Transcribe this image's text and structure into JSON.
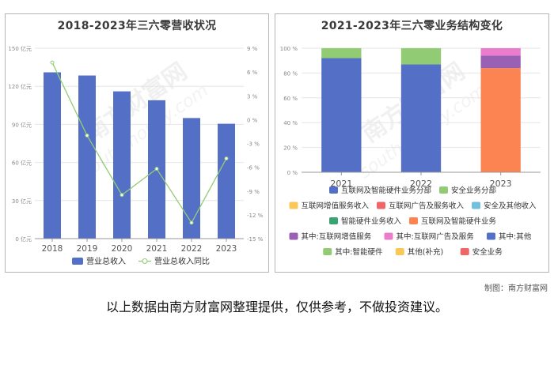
{
  "chart_data": [
    {
      "type": "bar",
      "title": "2018-2023年三六零营收状况",
      "categories": [
        "2018",
        "2019",
        "2020",
        "2021",
        "2022",
        "2023"
      ],
      "series": [
        {
          "name": "营业总收入",
          "kind": "bar",
          "axis": "left",
          "values": [
            131.0,
            128.5,
            116.0,
            109.0,
            95.0,
            90.5
          ]
        },
        {
          "name": "营业总收入同比",
          "kind": "line",
          "axis": "right",
          "values": [
            7.2,
            -2.0,
            -9.5,
            -6.2,
            -13.0,
            -4.9
          ]
        }
      ],
      "y_left": {
        "min": 0,
        "max": 150,
        "ticks": [
          0,
          30,
          60,
          90,
          120,
          150
        ],
        "tick_labels": [
          "0 亿元",
          "30 亿元",
          "60 亿元",
          "90 亿元",
          "120 亿元",
          "150 亿元"
        ]
      },
      "y_right": {
        "min": -15,
        "max": 9,
        "ticks": [
          -15,
          -12,
          -9,
          -6,
          -3,
          0,
          3,
          6,
          9
        ],
        "tick_labels": [
          "-15 %",
          "-12 %",
          "-9 %",
          "-6 %",
          "-3 %",
          "0 %",
          "3 %",
          "6 %",
          "9 %"
        ]
      },
      "grid": true,
      "legend": "bottom",
      "colors": {
        "bar": "#5470c6",
        "line": "#91cc75"
      }
    },
    {
      "type": "bar",
      "stacked": true,
      "title": "2021-2023年三六零业务结构变化",
      "categories": [
        "2021",
        "2022",
        "2023"
      ],
      "series": [
        {
          "name": "互联网及智能硬件业务分部",
          "color": "#5470c6",
          "values": [
            92,
            87,
            0
          ]
        },
        {
          "name": "安全业务分部",
          "color": "#91cc75",
          "values": [
            8,
            13,
            0
          ]
        },
        {
          "name": "互联网增值服务收入",
          "color": "#fac858",
          "values": [
            0,
            0,
            0
          ]
        },
        {
          "name": "互联网广告及服务收入",
          "color": "#ee6666",
          "values": [
            0,
            0,
            0
          ]
        },
        {
          "name": "安全及其他收入",
          "color": "#73c0de",
          "values": [
            0,
            0,
            0
          ]
        },
        {
          "name": "智能硬件业务收入",
          "color": "#3ba272",
          "values": [
            0,
            0,
            0
          ]
        },
        {
          "name": "互联网及智能硬件业务",
          "color": "#fc8452",
          "values": [
            0,
            0,
            84
          ]
        },
        {
          "name": "其中:互联网增值服务",
          "color": "#9a60b4",
          "values": [
            0,
            0,
            10
          ]
        },
        {
          "name": "其中:互联网广告及服务",
          "color": "#ea7ccc",
          "values": [
            0,
            0,
            6
          ]
        },
        {
          "name": "其中:其他",
          "color": "#5470c6",
          "values": [
            0,
            0,
            0
          ]
        },
        {
          "name": "其中:智能硬件",
          "color": "#91cc75",
          "values": [
            0,
            0,
            0
          ]
        },
        {
          "name": "其他(补充)",
          "color": "#fac858",
          "values": [
            0,
            0,
            0
          ]
        },
        {
          "name": "安全业务",
          "color": "#ee6666",
          "values": [
            0,
            0,
            0
          ]
        }
      ],
      "y": {
        "min": 0,
        "max": 100,
        "ticks": [
          0,
          20,
          40,
          60,
          80,
          100
        ],
        "tick_labels": [
          "0 %",
          "20 %",
          "40 %",
          "60 %",
          "80 %",
          "100 %"
        ]
      },
      "grid": true,
      "legend": "bottom"
    }
  ],
  "watermark": {
    "text": "南方财富网",
    "url_text": "southmoney.com"
  },
  "credit": "制图：南方财富网",
  "disclaimer": "以上数据由南方财富网整理提供，仅供参考，不做投资建议。"
}
